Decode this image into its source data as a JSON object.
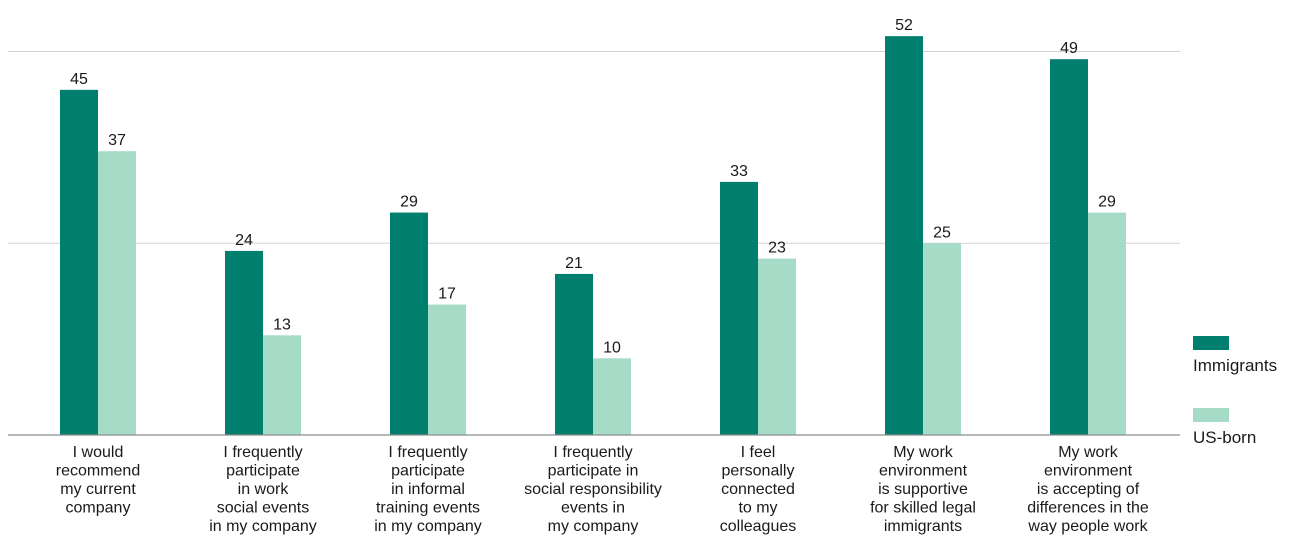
{
  "chart_data": {
    "type": "bar",
    "title": "",
    "xlabel": "",
    "ylabel": "",
    "ylim": [
      0,
      56
    ],
    "grid": true,
    "legend_position": "right",
    "categories": [
      [
        "I would",
        "recommend",
        "my current",
        "company"
      ],
      [
        "I frequently",
        "participate",
        "in work",
        "social events",
        "in my company"
      ],
      [
        "I frequently",
        "participate",
        "in informal",
        "training events",
        "in my company"
      ],
      [
        "I frequently",
        "participate in",
        "social responsibility",
        "events in",
        "my company"
      ],
      [
        "I feel",
        "personally",
        "connected",
        "to my",
        "colleagues"
      ],
      [
        "My work",
        "environment",
        "is supportive",
        "for skilled legal",
        "immigrants"
      ],
      [
        "My work",
        "environment",
        "is accepting of",
        "differences  in the",
        "way people work"
      ]
    ],
    "series": [
      {
        "name": "Immigrants",
        "color": "#007f6e",
        "values": [
          45,
          24,
          29,
          21,
          33,
          52,
          49
        ]
      },
      {
        "name": "US-born",
        "color": "#a6dbc8",
        "values": [
          37,
          13,
          17,
          10,
          23,
          25,
          29
        ]
      }
    ]
  }
}
